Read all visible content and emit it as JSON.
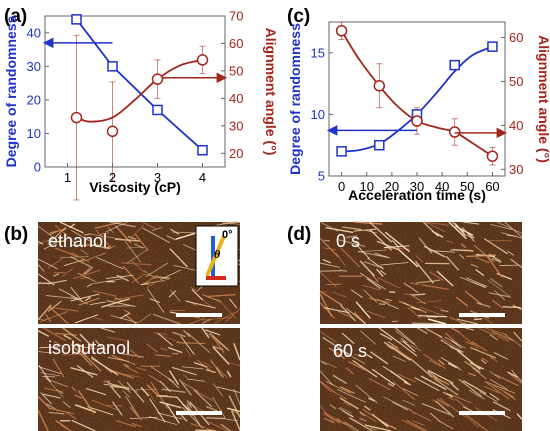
{
  "colors": {
    "blue": "#1f33c8",
    "red": "#a3261b",
    "micro_bg": "#3a1b0c"
  },
  "panels": {
    "a": "(a)",
    "b": "(b)",
    "c": "(c)",
    "d": "(d)"
  },
  "chart_data": [
    {
      "panel": "(a)",
      "type": "line",
      "xlabel": "Viscosity (cP)",
      "xlim": [
        0.5,
        4.5
      ],
      "xticks": [
        1,
        2,
        3,
        4
      ],
      "y_left": {
        "label": "Degree of randomness",
        "lim": [
          0,
          45
        ],
        "ticks": [
          0,
          10,
          20,
          30,
          40
        ]
      },
      "y_right": {
        "label": "Alignment angle (°)",
        "lim": [
          15,
          70
        ],
        "ticks": [
          20,
          30,
          40,
          50,
          60,
          70
        ]
      },
      "series": [
        {
          "axis": "left",
          "color": "blue",
          "marker": "square",
          "x": [
            1.2,
            2,
            3,
            4
          ],
          "y": [
            44,
            30,
            17,
            5
          ],
          "fit_y": [
            44,
            30,
            17,
            5
          ]
        },
        {
          "axis": "right",
          "color": "red",
          "marker": "circle",
          "x": [
            1.2,
            2,
            3,
            4
          ],
          "y": [
            33,
            28,
            47,
            54
          ],
          "err": [
            30,
            18,
            7,
            5
          ],
          "fit_x": [
            1.2,
            1.5,
            2,
            2.5,
            3,
            3.5,
            4
          ],
          "fit_y": [
            33,
            31.5,
            33,
            39.5,
            47,
            52,
            54
          ]
        }
      ],
      "arrows": [
        {
          "color": "blue",
          "from": [
            2,
            37
          ],
          "to": [
            0.5,
            37
          ],
          "axis": "left"
        },
        {
          "color": "red",
          "from": [
            3.1,
            47.5
          ],
          "to": [
            4.5,
            47.5
          ],
          "axis": "right"
        }
      ]
    },
    {
      "panel": "(c)",
      "type": "line",
      "xlabel": "Acceleration time (s)",
      "xlim": [
        -5,
        65
      ],
      "xticks": [
        0,
        10,
        20,
        30,
        40,
        50,
        60
      ],
      "y_left": {
        "label": "Degree of randomness",
        "lim": [
          5,
          17.5
        ],
        "ticks": [
          5,
          10,
          15
        ]
      },
      "y_right": {
        "label": "Alignment angle (°)",
        "lim": [
          28.5,
          63.5
        ],
        "ticks": [
          30,
          40,
          50,
          60
        ]
      },
      "series": [
        {
          "axis": "left",
          "color": "blue",
          "marker": "square",
          "x": [
            0,
            15,
            30,
            45,
            60
          ],
          "y": [
            7,
            7.5,
            10,
            14,
            15.5
          ],
          "fit_x": [
            0,
            7,
            15,
            22,
            30,
            38,
            45,
            52,
            60
          ],
          "fit_y": [
            7,
            7.1,
            7.6,
            8.6,
            10,
            11.8,
            13.5,
            14.8,
            15.5
          ]
        },
        {
          "axis": "right",
          "color": "red",
          "marker": "circle",
          "x": [
            0,
            15,
            30,
            45,
            60
          ],
          "y": [
            61.5,
            49,
            41,
            38.5,
            33
          ],
          "err": [
            2,
            5,
            3,
            3,
            2
          ],
          "fit_x": [
            0,
            7,
            15,
            22,
            30,
            38,
            45,
            52,
            60
          ],
          "fit_y": [
            61.5,
            55,
            49,
            44.5,
            41,
            39.5,
            38.5,
            36,
            33
          ]
        }
      ],
      "arrows": [
        {
          "color": "blue",
          "from": [
            30,
            8.7
          ],
          "to": [
            -5,
            8.7
          ],
          "axis": "left"
        },
        {
          "color": "red",
          "from": [
            45,
            38.3
          ],
          "to": [
            65,
            38.3
          ],
          "axis": "right"
        }
      ]
    }
  ],
  "micrographs": {
    "b_top": {
      "label": "ethanol",
      "inset_label": "0°",
      "inset_theta": "θ"
    },
    "b_bottom": {
      "label": "isobutanol"
    },
    "d_top": {
      "label": "0 s"
    },
    "d_bottom": {
      "label": "60 s"
    }
  }
}
